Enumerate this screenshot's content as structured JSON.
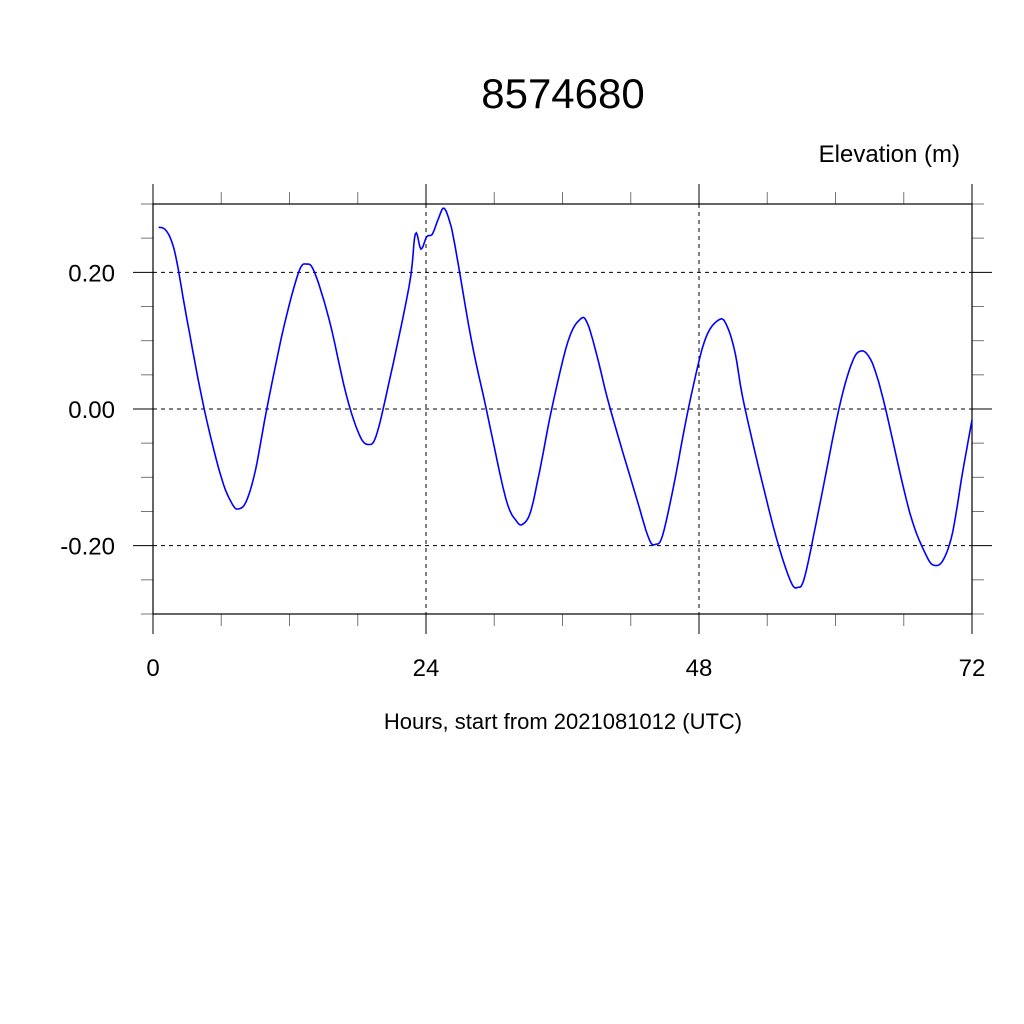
{
  "chart_data": {
    "type": "line",
    "title": "8574680",
    "ylabel": "Elevation (m)",
    "xlabel": "Hours, start from 2021081012 (UTC)",
    "xlim": [
      0,
      72
    ],
    "ylim": [
      -0.3,
      0.3
    ],
    "x_ticks": [
      0,
      24,
      48,
      72
    ],
    "x_tick_labels": [
      "0",
      "24",
      "48",
      "72"
    ],
    "x_minor_step": 6,
    "y_ticks": [
      -0.2,
      0.0,
      0.2
    ],
    "y_tick_labels": [
      "-0.20",
      "0.00",
      "0.20"
    ],
    "y_minor_step": 0.05,
    "grid": "dashed at major ticks",
    "line_color": "#0000ff",
    "series": [
      {
        "x": [
          0.5,
          1.05,
          1.6,
          2.1,
          3,
          4.5,
          6,
          7,
          7.56,
          8.2,
          9,
          10,
          11.5,
          12.8,
          13.5,
          14.2,
          15.5,
          17,
          18.2,
          19,
          19.6,
          20.5,
          22.5,
          23.06,
          23.56,
          24.06,
          24.56,
          25.08,
          25.55,
          26.05,
          26.55,
          28,
          29.3,
          31,
          32,
          32.55,
          33.2,
          34,
          35.05,
          36.5,
          37.6,
          38.2,
          39,
          40.2,
          42.5,
          43.6,
          44.2,
          44.8,
          45.8,
          47.06,
          48.5,
          49.8,
          50.5,
          51.2,
          52.05,
          54.5,
          56,
          56.7,
          57.3,
          58.5,
          60.3,
          61.5,
          62.3,
          63,
          63.6,
          64.4,
          66.5,
          68,
          68.75,
          69.5,
          70.3,
          71.2,
          72
        ],
        "y": [
          0.266,
          0.263,
          0.247,
          0.215,
          0.13,
          0,
          -0.1,
          -0.14,
          -0.146,
          -0.135,
          -0.09,
          0,
          0.12,
          0.2,
          0.212,
          0.2,
          0.13,
          0.02,
          -0.04,
          -0.052,
          -0.04,
          0.02,
          0.178,
          0.256,
          0.234,
          0.252,
          0.256,
          0.278,
          0.294,
          0.276,
          0.239,
          0.1,
          0,
          -0.13,
          -0.165,
          -0.168,
          -0.15,
          -0.09,
          0,
          0.1,
          0.132,
          0.125,
          0.08,
          0,
          -0.13,
          -0.19,
          -0.198,
          -0.185,
          -0.11,
          0,
          0.1,
          0.131,
          0.12,
          0.08,
          0,
          -0.17,
          -0.25,
          -0.261,
          -0.245,
          -0.15,
          0,
          0.07,
          0.085,
          0.075,
          0.05,
          0,
          -0.15,
          -0.215,
          -0.229,
          -0.22,
          -0.18,
          -0.09,
          -0.016
        ]
      }
    ]
  }
}
